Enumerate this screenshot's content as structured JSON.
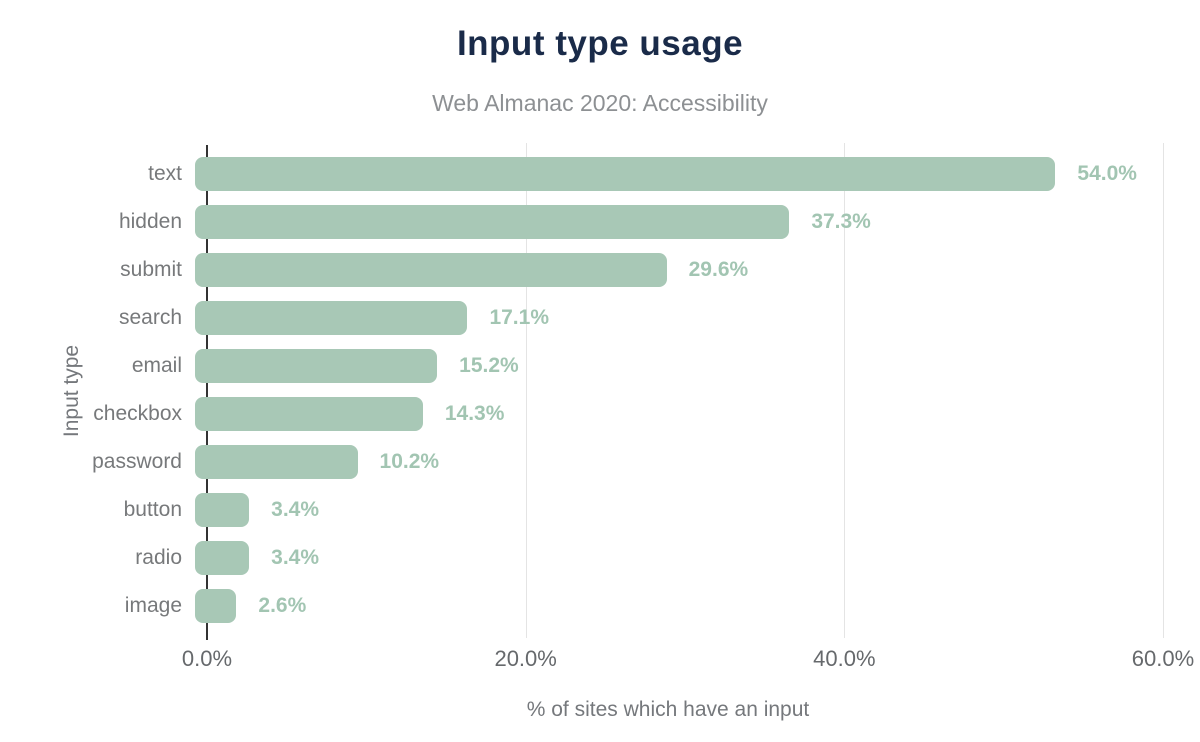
{
  "chart_data": {
    "type": "bar",
    "orientation": "horizontal",
    "title": "Input type usage",
    "subtitle": "Web Almanac 2020: Accessibility",
    "xlabel": "% of sites which have an input",
    "ylabel": "Input type",
    "xlim": [
      0,
      60
    ],
    "x_tick_values": [
      0,
      20,
      40,
      60
    ],
    "x_tick_labels": [
      "0.0%",
      "20.0%",
      "40.0%",
      "60.0%"
    ],
    "grid": "vertical-gridlines-only",
    "legend": "none",
    "categories": [
      "text",
      "hidden",
      "submit",
      "search",
      "email",
      "checkbox",
      "password",
      "button",
      "radio",
      "image"
    ],
    "values": [
      54.0,
      37.3,
      29.6,
      17.1,
      15.2,
      14.3,
      10.2,
      3.4,
      3.4,
      2.6
    ],
    "value_labels": [
      "54.0%",
      "37.3%",
      "29.6%",
      "17.1%",
      "15.2%",
      "14.3%",
      "10.2%",
      "3.4%",
      "3.4%",
      "2.6%"
    ]
  },
  "colors": {
    "background": "#ffffff",
    "bar": "#a8c8b6",
    "value_label": "#a2c5b2",
    "title": "#1a2b49",
    "subtitle": "#8d9093",
    "category_label": "#77797b",
    "tick_label": "#66696c",
    "axis_label": "#75787c",
    "axis_line": "#333333",
    "gridline": "#e4e4e4"
  }
}
